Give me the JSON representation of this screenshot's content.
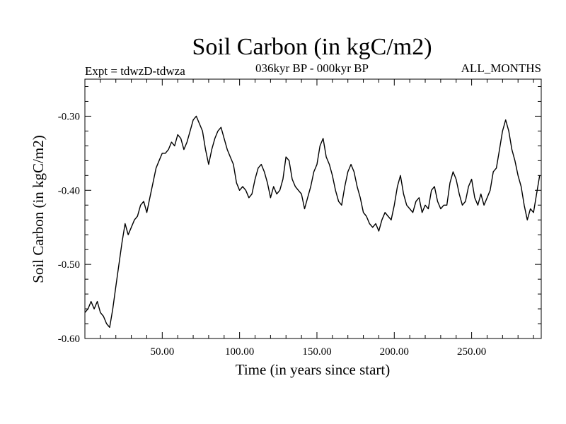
{
  "chart_data": {
    "type": "line",
    "title": "Soil Carbon (in kgC/m2)",
    "experiment_label": "Expt = tdwzD-tdwza",
    "period_label": "036kyr BP - 000kyr BP",
    "season_label": "ALL_MONTHS",
    "xlabel": "Time (in years since start)",
    "ylabel": "Soil Carbon (in kgC/m2)",
    "xlim": [
      0,
      295
    ],
    "ylim": [
      -0.6,
      -0.25
    ],
    "xticks": [
      50,
      100,
      150,
      200,
      250
    ],
    "xtick_labels": [
      "50.00",
      "100.00",
      "150.00",
      "200.00",
      "250.00"
    ],
    "yticks": [
      -0.6,
      -0.5,
      -0.4,
      -0.3
    ],
    "ytick_labels": [
      "-0.60",
      "-0.50",
      "-0.40",
      "-0.30"
    ],
    "grid": false,
    "line_color": "#000000",
    "series": [
      {
        "x": [
          0,
          2,
          4,
          6,
          8,
          10,
          12,
          14,
          16,
          18,
          20,
          22,
          24,
          26,
          28,
          30,
          32,
          34,
          36,
          38,
          40,
          42,
          44,
          46,
          48,
          50,
          52,
          54,
          56,
          58,
          60,
          62,
          64,
          66,
          68,
          70,
          72,
          74,
          76,
          78,
          80,
          82,
          84,
          86,
          88,
          90,
          92,
          94,
          96,
          98,
          100,
          102,
          104,
          106,
          108,
          110,
          112,
          114,
          116,
          118,
          120,
          122,
          124,
          126,
          128,
          130,
          132,
          134,
          136,
          138,
          140,
          142,
          144,
          146,
          148,
          150,
          152,
          154,
          156,
          158,
          160,
          162,
          164,
          166,
          168,
          170,
          172,
          174,
          176,
          178,
          180,
          182,
          184,
          186,
          188,
          190,
          192,
          194,
          196,
          198,
          200,
          202,
          204,
          206,
          208,
          210,
          212,
          214,
          216,
          218,
          220,
          222,
          224,
          226,
          228,
          230,
          232,
          234,
          236,
          238,
          240,
          242,
          244,
          246,
          248,
          250,
          252,
          254,
          256,
          258,
          260,
          262,
          264,
          266,
          268,
          270,
          272,
          274,
          276,
          278,
          280,
          282,
          284,
          286,
          288,
          290,
          292,
          294
        ],
        "values": [
          -0.565,
          -0.56,
          -0.55,
          -0.56,
          -0.55,
          -0.565,
          -0.57,
          -0.58,
          -0.585,
          -0.56,
          -0.53,
          -0.5,
          -0.47,
          -0.445,
          -0.46,
          -0.45,
          -0.44,
          -0.435,
          -0.42,
          -0.415,
          -0.43,
          -0.41,
          -0.39,
          -0.37,
          -0.36,
          -0.35,
          -0.35,
          -0.345,
          -0.335,
          -0.34,
          -0.325,
          -0.33,
          -0.345,
          -0.335,
          -0.32,
          -0.305,
          -0.3,
          -0.31,
          -0.32,
          -0.345,
          -0.365,
          -0.345,
          -0.33,
          -0.32,
          -0.315,
          -0.33,
          -0.345,
          -0.355,
          -0.365,
          -0.39,
          -0.4,
          -0.395,
          -0.4,
          -0.41,
          -0.405,
          -0.385,
          -0.37,
          -0.365,
          -0.375,
          -0.39,
          -0.41,
          -0.395,
          -0.405,
          -0.4,
          -0.385,
          -0.355,
          -0.36,
          -0.385,
          -0.395,
          -0.4,
          -0.405,
          -0.425,
          -0.41,
          -0.395,
          -0.375,
          -0.365,
          -0.34,
          -0.33,
          -0.355,
          -0.365,
          -0.38,
          -0.4,
          -0.415,
          -0.42,
          -0.395,
          -0.375,
          -0.365,
          -0.375,
          -0.395,
          -0.41,
          -0.43,
          -0.435,
          -0.445,
          -0.45,
          -0.445,
          -0.455,
          -0.44,
          -0.43,
          -0.435,
          -0.44,
          -0.42,
          -0.395,
          -0.38,
          -0.405,
          -0.42,
          -0.425,
          -0.43,
          -0.415,
          -0.41,
          -0.43,
          -0.42,
          -0.425,
          -0.4,
          -0.395,
          -0.415,
          -0.425,
          -0.42,
          -0.42,
          -0.39,
          -0.375,
          -0.385,
          -0.405,
          -0.42,
          -0.415,
          -0.395,
          -0.385,
          -0.41,
          -0.42,
          -0.405,
          -0.42,
          -0.41,
          -0.4,
          -0.375,
          -0.37,
          -0.345,
          -0.32,
          -0.305,
          -0.32,
          -0.345,
          -0.36,
          -0.38,
          -0.395,
          -0.42,
          -0.44,
          -0.425,
          -0.43,
          -0.405,
          -0.38
        ]
      }
    ]
  }
}
